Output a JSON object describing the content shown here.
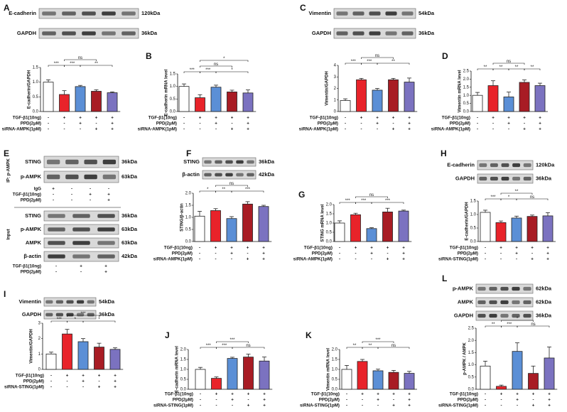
{
  "chart_data": [
    {
      "type": "bar",
      "panel": "A",
      "ylabel": "E-cadherin/GAPDH",
      "blots": [
        {
          "name": "E-cadherin",
          "size": "120kDa"
        },
        {
          "name": "GAPDH",
          "size": "36kDa"
        }
      ],
      "values": [
        1.0,
        0.58,
        0.85,
        0.69,
        0.64
      ],
      "errors": [
        0.08,
        0.13,
        0.04,
        0.05,
        0.03
      ],
      "colors": [
        "#ffffff",
        "#e8232a",
        "#5b8fd6",
        "#a81c24",
        "#7b72c0"
      ],
      "ylim": [
        0,
        1.5
      ],
      "yticks": [
        {
          "value": 0,
          "label": "0.0"
        },
        {
          "value": 0.5,
          "label": "0.5"
        },
        {
          "value": 1,
          "label": "1.0"
        },
        {
          "value": 1.5,
          "label": "1.5"
        }
      ],
      "significance": [
        "***",
        "***",
        "**",
        "ns"
      ],
      "treatments": [
        {
          "name": "TGF-β1(10ng)",
          "marks": [
            "-",
            "+",
            "+",
            "+",
            "+"
          ]
        },
        {
          "name": "PPD(2μM)",
          "marks": [
            "-",
            "-",
            "+",
            "-",
            "+"
          ]
        },
        {
          "name": "siRNA-AMPK(1pM)",
          "marks": [
            "-",
            "-",
            "-",
            "+",
            "+"
          ]
        }
      ]
    },
    {
      "type": "bar",
      "panel": "B",
      "ylabel": "E-cadherin mRNA level",
      "values": [
        1.0,
        0.55,
        0.97,
        0.78,
        0.74
      ],
      "errors": [
        0.1,
        0.12,
        0.08,
        0.07,
        0.12
      ],
      "colors": [
        "#ffffff",
        "#e8232a",
        "#5b8fd6",
        "#a81c24",
        "#7b72c0"
      ],
      "ylim": [
        0,
        1.5
      ],
      "yticks": [
        {
          "value": 0,
          "label": "0.0"
        },
        {
          "value": 0.5,
          "label": "0.5"
        },
        {
          "value": 1,
          "label": "1.0"
        },
        {
          "value": 1.5,
          "label": "1.5"
        }
      ],
      "significance": [
        "***",
        "***",
        "*",
        "ns",
        "*"
      ],
      "treatments": [
        {
          "name": "TGF-β1(10ng)",
          "marks": [
            "-",
            "+",
            "+",
            "+",
            "+"
          ]
        },
        {
          "name": "PPD(2μM)",
          "marks": [
            "-",
            "-",
            "+",
            "-",
            "+"
          ]
        },
        {
          "name": "siRNA-AMPK(1pM)",
          "marks": [
            "-",
            "-",
            "-",
            "+",
            "+"
          ]
        }
      ]
    },
    {
      "type": "bar",
      "panel": "C",
      "ylabel": "Vimentin/GAPDH",
      "blots": [
        {
          "name": "Vimentin",
          "size": "54kDa"
        },
        {
          "name": "GAPDH",
          "size": "36kDa"
        }
      ],
      "values": [
        0.95,
        2.75,
        1.85,
        2.75,
        2.55
      ],
      "errors": [
        0.15,
        0.12,
        0.15,
        0.12,
        0.35
      ],
      "colors": [
        "#ffffff",
        "#e8232a",
        "#5b8fd6",
        "#a81c24",
        "#7b72c0"
      ],
      "ylim": [
        0,
        4
      ],
      "yticks": [
        0,
        1,
        2,
        3,
        4
      ],
      "significance": [
        "***",
        "***",
        "**",
        "ns"
      ],
      "treatments": [
        {
          "name": "TGF-β1(10ng)",
          "marks": [
            "-",
            "+",
            "+",
            "+",
            "+"
          ]
        },
        {
          "name": "PPD(2μM)",
          "marks": [
            "-",
            "-",
            "+",
            "-",
            "+"
          ]
        },
        {
          "name": "siRNA-AMPK(1pM)",
          "marks": [
            "-",
            "-",
            "-",
            "+",
            "+"
          ]
        }
      ]
    },
    {
      "type": "bar",
      "panel": "D",
      "ylabel": "Vimentin mRNA level",
      "values": [
        1.0,
        1.6,
        0.9,
        1.8,
        1.6
      ],
      "errors": [
        0.18,
        0.3,
        0.3,
        0.15,
        0.15
      ],
      "colors": [
        "#ffffff",
        "#e8232a",
        "#5b8fd6",
        "#a81c24",
        "#7b72c0"
      ],
      "ylim": [
        0,
        2.5
      ],
      "yticks": [
        {
          "value": 0,
          "label": "0.0"
        },
        {
          "value": 0.5,
          "label": "0.5"
        },
        {
          "value": 1,
          "label": "1.0"
        },
        {
          "value": 1.5,
          "label": "1.5"
        },
        {
          "value": 2,
          "label": "2.0"
        },
        {
          "value": 2.5,
          "label": "2.5"
        }
      ],
      "significance": [
        "**",
        "**",
        "**",
        "**",
        "ns"
      ],
      "treatments": [
        {
          "name": "TGF-β1(10ng)",
          "marks": [
            "-",
            "+",
            "+",
            "+",
            "+"
          ]
        },
        {
          "name": "PPD(2μM)",
          "marks": [
            "-",
            "-",
            "+",
            "-",
            "+"
          ]
        },
        {
          "name": "siRNA-AMPK(1pM)",
          "marks": [
            "-",
            "-",
            "-",
            "+",
            "+"
          ]
        }
      ]
    },
    {
      "type": "blot",
      "panel": "E",
      "ip_label": "IP: p-AMPK",
      "ip_blots": [
        {
          "name": "STING",
          "size": "36kDa"
        },
        {
          "name": "p-AMPK",
          "size": "63kDa"
        }
      ],
      "ip_treatments": [
        {
          "name": "IgG",
          "marks": [
            "+",
            "-",
            "-",
            "-"
          ]
        },
        {
          "name": "TGF-β1(10ng)",
          "marks": [
            "-",
            "-",
            "+",
            "+"
          ]
        },
        {
          "name": "PPD(2μM)",
          "marks": [
            "-",
            "-",
            "-",
            "+"
          ]
        }
      ],
      "input_label": "Input",
      "input_blots": [
        {
          "name": "STING",
          "size": "36kDa"
        },
        {
          "name": "p-AMPK",
          "size": "63kDa"
        },
        {
          "name": "AMPK",
          "size": "63kDa"
        },
        {
          "name": "β-actin",
          "size": "42kDa"
        }
      ],
      "input_treatments": [
        {
          "name": "TGF-β1(10ng)",
          "marks": [
            "-",
            "+",
            "+"
          ]
        },
        {
          "name": "PPD(2μM)",
          "marks": [
            "-",
            "-",
            "+"
          ]
        }
      ]
    },
    {
      "type": "bar",
      "panel": "F",
      "ylabel": "STING/β-actin",
      "blots": [
        {
          "name": "STING",
          "size": "36kDa"
        },
        {
          "name": "β-actin",
          "size": "42kDa"
        }
      ],
      "values": [
        1.05,
        1.28,
        0.95,
        1.55,
        1.45
      ],
      "errors": [
        0.2,
        0.08,
        0.08,
        0.1,
        0.05
      ],
      "colors": [
        "#ffffff",
        "#e8232a",
        "#5b8fd6",
        "#a81c24",
        "#7b72c0"
      ],
      "ylim": [
        0,
        2
      ],
      "yticks": [
        {
          "value": 0,
          "label": "0.0"
        },
        {
          "value": 0.5,
          "label": "0.5"
        },
        {
          "value": 1,
          "label": "1.0"
        },
        {
          "value": 1.5,
          "label": "1.5"
        },
        {
          "value": 2,
          "label": "2.0"
        }
      ],
      "significance": [
        "*",
        "**",
        "***",
        "ns"
      ],
      "treatments": [
        {
          "name": "TGF-β1(10ng)",
          "marks": [
            "-",
            "+",
            "+",
            "+",
            "+"
          ]
        },
        {
          "name": "PPD(2μM)",
          "marks": [
            "-",
            "-",
            "+",
            "-",
            "+"
          ]
        },
        {
          "name": "siRNA-AMPK(1pM)",
          "marks": [
            "-",
            "-",
            "-",
            "+",
            "+"
          ]
        }
      ]
    },
    {
      "type": "bar",
      "panel": "G",
      "ylabel": "STING mRNA level",
      "values": [
        1.0,
        1.45,
        0.7,
        1.6,
        1.65
      ],
      "errors": [
        0.12,
        0.08,
        0.05,
        0.2,
        0.05
      ],
      "colors": [
        "#ffffff",
        "#e8232a",
        "#5b8fd6",
        "#a81c24",
        "#7b72c0"
      ],
      "ylim": [
        0,
        2
      ],
      "yticks": [
        {
          "value": 0,
          "label": "0.0"
        },
        {
          "value": 0.5,
          "label": "0.5"
        },
        {
          "value": 1,
          "label": "1.0"
        },
        {
          "value": 1.5,
          "label": "1.5"
        },
        {
          "value": 2,
          "label": "2.0"
        }
      ],
      "significance": [
        "***",
        "***",
        "***",
        "ns"
      ],
      "treatments": [
        {
          "name": "TGF-β1(10ng)",
          "marks": [
            "-",
            "+",
            "+",
            "+",
            "+"
          ]
        },
        {
          "name": "PPD(2μM)",
          "marks": [
            "-",
            "-",
            "+",
            "-",
            "+"
          ]
        },
        {
          "name": "siRNA-AMPK(1pM)",
          "marks": [
            "-",
            "-",
            "-",
            "+",
            "+"
          ]
        }
      ]
    },
    {
      "type": "bar",
      "panel": "H",
      "ylabel": "E-cadherin/GAPDH",
      "blots": [
        {
          "name": "E-cadherin",
          "size": "120kDa"
        },
        {
          "name": "GAPDH",
          "size": "36kDa"
        }
      ],
      "values": [
        1.08,
        0.7,
        0.87,
        0.93,
        0.95
      ],
      "errors": [
        0.08,
        0.06,
        0.07,
        0.05,
        0.12
      ],
      "colors": [
        "#ffffff",
        "#e8232a",
        "#5b8fd6",
        "#a81c24",
        "#7b72c0"
      ],
      "ylim": [
        0,
        1.5
      ],
      "yticks": [
        {
          "value": 0,
          "label": "0.0"
        },
        {
          "value": 0.5,
          "label": "0.5"
        },
        {
          "value": 1,
          "label": "1.0"
        },
        {
          "value": 1.5,
          "label": "1.5"
        }
      ],
      "significance": [
        "***",
        "*",
        "ns",
        "**"
      ],
      "treatments": [
        {
          "name": "TGF-β1(10ng)",
          "marks": [
            "-",
            "+",
            "+",
            "+",
            "+"
          ]
        },
        {
          "name": "PPD(2μM)",
          "marks": [
            "-",
            "-",
            "+",
            "-",
            "+"
          ]
        },
        {
          "name": "siRNA-STING(1pM)",
          "marks": [
            "-",
            "-",
            "-",
            "+",
            "+"
          ]
        }
      ]
    },
    {
      "type": "bar",
      "panel": "I",
      "ylabel": "Vimentin/GAPDH",
      "blots": [
        {
          "name": "Vimentin",
          "size": "54kDa"
        },
        {
          "name": "GAPDH",
          "size": "36kDa"
        }
      ],
      "values": [
        1.0,
        2.3,
        1.8,
        1.45,
        1.3
      ],
      "errors": [
        0.12,
        0.3,
        0.2,
        0.25,
        0.1
      ],
      "colors": [
        "#ffffff",
        "#e8232a",
        "#5b8fd6",
        "#a81c24",
        "#7b72c0"
      ],
      "ylim": [
        0,
        3
      ],
      "yticks": [
        0,
        1,
        2,
        3
      ],
      "significance": [
        "***",
        "*",
        "*",
        "***"
      ],
      "treatments": [
        {
          "name": "TGF-β1(10ng)",
          "marks": [
            "-",
            "+",
            "+",
            "+",
            "+"
          ]
        },
        {
          "name": "PPD(2μM)",
          "marks": [
            "-",
            "-",
            "+",
            "-",
            "+"
          ]
        },
        {
          "name": "siRNA-STING(1pM)",
          "marks": [
            "-",
            "-",
            "-",
            "+",
            "+"
          ]
        }
      ]
    },
    {
      "type": "bar",
      "panel": "J",
      "ylabel": "E-cadherin mRNA level",
      "values": [
        1.0,
        0.55,
        1.55,
        1.62,
        1.42
      ],
      "errors": [
        0.1,
        0.07,
        0.06,
        0.15,
        0.2
      ],
      "colors": [
        "#ffffff",
        "#e8232a",
        "#5b8fd6",
        "#a81c24",
        "#7b72c0"
      ],
      "ylim": [
        0,
        2
      ],
      "yticks": [
        {
          "value": 0,
          "label": "0.0"
        },
        {
          "value": 0.5,
          "label": "0.5"
        },
        {
          "value": 1,
          "label": "1.0"
        },
        {
          "value": 1.5,
          "label": "1.5"
        },
        {
          "value": 2,
          "label": "2.0"
        }
      ],
      "significance": [
        "***",
        "***",
        "ns",
        "***"
      ],
      "treatments": [
        {
          "name": "TGF-β1(10ng)",
          "marks": [
            "-",
            "+",
            "+",
            "+",
            "+"
          ]
        },
        {
          "name": "PPD(2μM)",
          "marks": [
            "-",
            "-",
            "+",
            "-",
            "+"
          ]
        },
        {
          "name": "siRNA-STING(1pM)",
          "marks": [
            "-",
            "-",
            "-",
            "+",
            "+"
          ]
        }
      ]
    },
    {
      "type": "bar",
      "panel": "K",
      "ylabel": "Vimentin mRNA level",
      "values": [
        1.0,
        1.4,
        0.93,
        0.85,
        0.8
      ],
      "errors": [
        0.2,
        0.1,
        0.08,
        0.1,
        0.1
      ],
      "colors": [
        "#ffffff",
        "#e8232a",
        "#5b8fd6",
        "#a81c24",
        "#7b72c0"
      ],
      "ylim": [
        0,
        2
      ],
      "yticks": [
        {
          "value": 0,
          "label": "0.0"
        },
        {
          "value": 0.5,
          "label": "0.5"
        },
        {
          "value": 1,
          "label": "1.0"
        },
        {
          "value": 1.5,
          "label": "1.5"
        },
        {
          "value": 2,
          "label": "2.0"
        }
      ],
      "significance": [
        "**",
        "**",
        "ns",
        "***"
      ],
      "treatments": [
        {
          "name": "TGF-β1(10ng)",
          "marks": [
            "-",
            "+",
            "+",
            "+",
            "+"
          ]
        },
        {
          "name": "PPD(2μM)",
          "marks": [
            "-",
            "-",
            "+",
            "-",
            "+"
          ]
        },
        {
          "name": "siRNA-STING(1pM)",
          "marks": [
            "-",
            "-",
            "-",
            "+",
            "+"
          ]
        }
      ]
    },
    {
      "type": "bar",
      "panel": "L",
      "ylabel": "p-AMPK / AMPK",
      "blots": [
        {
          "name": "p-AMPK",
          "size": "62kDa"
        },
        {
          "name": "AMPK",
          "size": "62kDa"
        },
        {
          "name": "GAPDH",
          "size": "36kDa"
        }
      ],
      "values": [
        0.95,
        0.12,
        1.55,
        0.65,
        1.28
      ],
      "errors": [
        0.2,
        0.05,
        0.35,
        0.3,
        0.45
      ],
      "colors": [
        "#ffffff",
        "#e8232a",
        "#5b8fd6",
        "#a81c24",
        "#7b72c0"
      ],
      "ylim": [
        0,
        2.5
      ],
      "yticks": [
        {
          "value": 0,
          "label": "0.0"
        },
        {
          "value": 0.5,
          "label": "0.5"
        },
        {
          "value": 1,
          "label": "1.0"
        },
        {
          "value": 1.5,
          "label": "1.5"
        },
        {
          "value": 2,
          "label": "2.0"
        },
        {
          "value": 2.5,
          "label": "2.5"
        }
      ],
      "significance": [
        "**",
        "***",
        "ns",
        "*"
      ],
      "treatments": [
        {
          "name": "TGF-β1(10ng)",
          "marks": [
            "-",
            "+",
            "+",
            "+",
            "+"
          ]
        },
        {
          "name": "PPD(2μM)",
          "marks": [
            "-",
            "-",
            "+",
            "-",
            "+"
          ]
        },
        {
          "name": "siRNA-STING(1pM)",
          "marks": [
            "-",
            "-",
            "-",
            "+",
            "+"
          ]
        }
      ]
    }
  ]
}
